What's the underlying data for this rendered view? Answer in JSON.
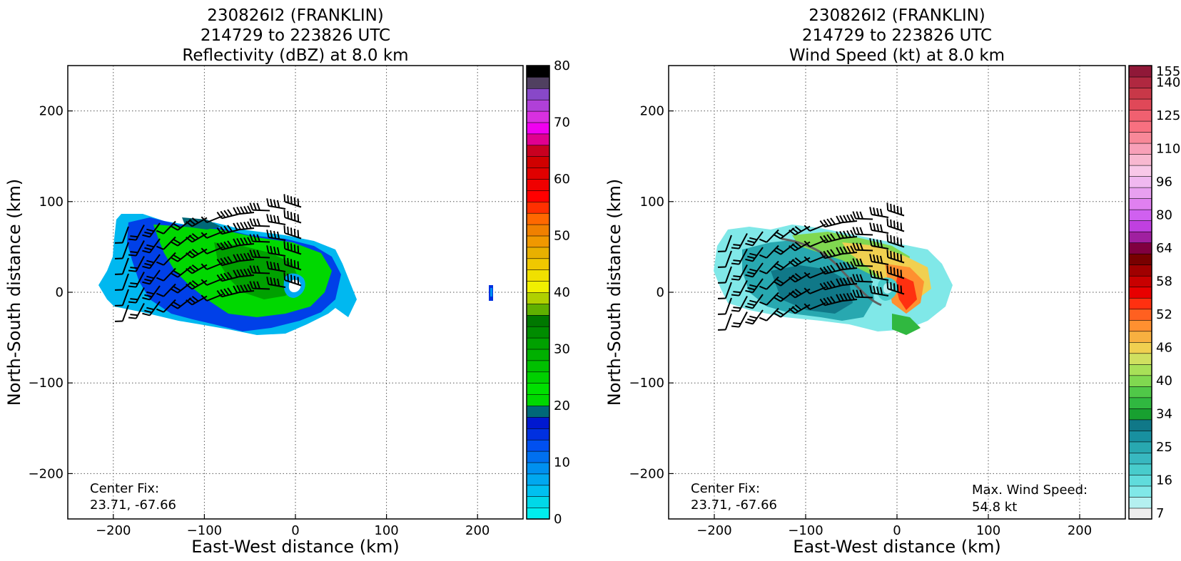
{
  "chart_data": [
    {
      "type": "heatmap",
      "title_lines": [
        "230826I2 (FRANKLIN)",
        "214729 to 223826 UTC",
        "Reflectivity (dBZ) at 8.0 km"
      ],
      "xlabel": "East-West distance (km)",
      "ylabel": "North-South distance (km)",
      "xlim": [
        -250,
        250
      ],
      "ylim": [
        -250,
        250
      ],
      "xticks": [
        -200,
        -100,
        0,
        100,
        200
      ],
      "yticks": [
        -200,
        -100,
        0,
        100,
        200
      ],
      "grid": true,
      "colorbar": {
        "min": 0,
        "max": 80,
        "step": 2.5,
        "ticks": [
          0,
          10,
          20,
          30,
          40,
          50,
          60,
          70,
          80
        ],
        "colors": [
          "#00eeee",
          "#00d8e8",
          "#00c0f0",
          "#00a8f0",
          "#0090f0",
          "#0070f0",
          "#0050f0",
          "#0030e0",
          "#0018d0",
          "#006878",
          "#00d800",
          "#00e000",
          "#00d000",
          "#00c000",
          "#00b000",
          "#00a000",
          "#008c00",
          "#007800",
          "#60b000",
          "#b0d000",
          "#f0f000",
          "#f0e000",
          "#f0c800",
          "#e8b000",
          "#f09800",
          "#f08000",
          "#ff6800",
          "#ff3000",
          "#ff0000",
          "#f00000",
          "#e00000",
          "#d00000",
          "#c80020",
          "#e00090",
          "#f000f0",
          "#d830e0",
          "#b040d8",
          "#8848c8",
          "#504060",
          "#000000"
        ]
      },
      "annotations": [
        "Center Fix:",
        "23.71, -67.66"
      ],
      "center_fix": [
        23.71,
        -67.66
      ]
    },
    {
      "type": "heatmap",
      "title_lines": [
        "230826I2 (FRANKLIN)",
        "214729 to 223826 UTC",
        "Wind Speed (kt) at 8.0 km"
      ],
      "xlabel": "East-West distance (km)",
      "ylabel": "North-South distance (km)",
      "xlim": [
        -250,
        250
      ],
      "ylim": [
        -250,
        250
      ],
      "xticks": [
        -200,
        -100,
        0,
        100,
        200
      ],
      "yticks": [
        -200,
        -100,
        0,
        100,
        200
      ],
      "grid": true,
      "colorbar": {
        "ticks": [
          "7",
          "16",
          "25",
          "34",
          "40",
          "46",
          "52",
          "58",
          "64",
          "80",
          "96",
          "110",
          "125",
          "140",
          "155"
        ],
        "colors": [
          "#eeeeee",
          "#b4f0f0",
          "#80e8e8",
          "#60dcdc",
          "#48cccc",
          "#38b8c0",
          "#28a8b0",
          "#1890a0",
          "#107888",
          "#18a030",
          "#30b840",
          "#50c848",
          "#80d850",
          "#a8e058",
          "#d0e060",
          "#f0d050",
          "#f8b040",
          "#ff9030",
          "#ff6020",
          "#ff3010",
          "#e80000",
          "#c80000",
          "#a00000",
          "#780000",
          "#800040",
          "#a020a0",
          "#c040e0",
          "#d060f0",
          "#e080f0",
          "#e8a0f0",
          "#f0b8f0",
          "#f8c8e8",
          "#f8b8d0",
          "#f8a0b8",
          "#f88898",
          "#f87080",
          "#f06070",
          "#e04858",
          "#c83848",
          "#b02840",
          "#901838"
        ]
      },
      "annotations": [
        "Center Fix:",
        "23.71, -67.66",
        "Max. Wind Speed:",
        "54.8 kt"
      ],
      "center_fix": [
        23.71,
        -67.66
      ],
      "max_wind_speed_kt": 54.8
    }
  ]
}
